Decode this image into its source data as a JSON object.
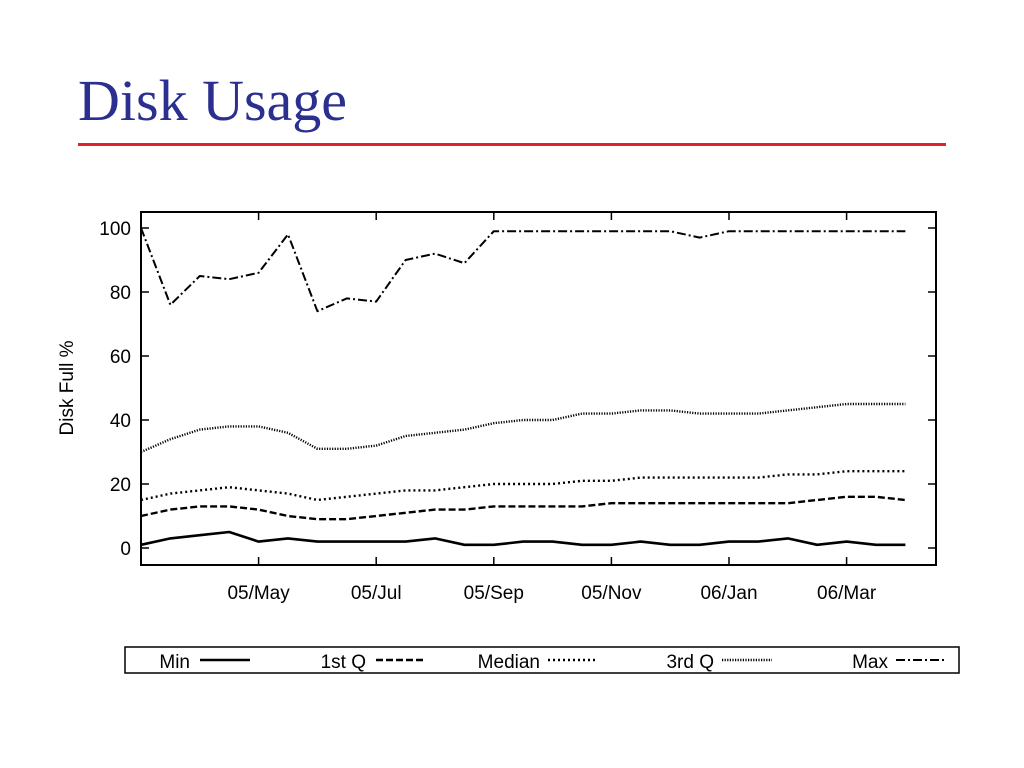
{
  "slide": {
    "title": "Disk Usage"
  },
  "colors": {
    "title": "#2b2f8f",
    "rule": "#e0232a",
    "series": "#000000"
  },
  "chart_data": {
    "type": "line",
    "title": "",
    "xlabel": "",
    "ylabel": "Disk Full %",
    "ylim": [
      0,
      100
    ],
    "xlim": [
      0,
      13.25
    ],
    "x_unit": "months since 2005-03 (0 = March 2005)",
    "yticks": [
      0,
      20,
      40,
      60,
      80,
      100
    ],
    "xticks": [
      {
        "x": 2,
        "label": "05/May"
      },
      {
        "x": 4,
        "label": "05/Jul"
      },
      {
        "x": 6,
        "label": "05/Sep"
      },
      {
        "x": 8,
        "label": "05/Nov"
      },
      {
        "x": 10,
        "label": "06/Jan"
      },
      {
        "x": 12,
        "label": "06/Mar"
      }
    ],
    "grid": false,
    "legend_position": "bottom",
    "x": [
      0,
      0.5,
      1,
      1.5,
      2,
      2.5,
      3,
      3.5,
      4,
      4.5,
      5,
      5.5,
      6,
      6.5,
      7,
      7.5,
      8,
      8.5,
      9,
      9.5,
      10,
      10.5,
      11,
      11.5,
      12,
      12.5,
      13
    ],
    "series": [
      {
        "name": "Min",
        "style": "solid",
        "values": [
          1,
          3,
          4,
          5,
          2,
          3,
          2,
          2,
          2,
          2,
          3,
          1,
          1,
          2,
          2,
          1,
          1,
          2,
          1,
          1,
          2,
          2,
          3,
          1,
          2,
          1,
          1
        ]
      },
      {
        "name": "1st Q",
        "style": "dashed",
        "values": [
          10,
          12,
          13,
          13,
          12,
          10,
          9,
          9,
          10,
          11,
          12,
          12,
          13,
          13,
          13,
          13,
          14,
          14,
          14,
          14,
          14,
          14,
          14,
          15,
          16,
          16,
          15
        ]
      },
      {
        "name": "Median",
        "style": "dotted",
        "values": [
          15,
          17,
          18,
          19,
          18,
          17,
          15,
          16,
          17,
          18,
          18,
          19,
          20,
          20,
          20,
          21,
          21,
          22,
          22,
          22,
          22,
          22,
          23,
          23,
          24,
          24,
          24
        ]
      },
      {
        "name": "3rd Q",
        "style": "fine-dotted",
        "values": [
          30,
          34,
          37,
          38,
          38,
          36,
          31,
          31,
          32,
          35,
          36,
          37,
          39,
          40,
          40,
          42,
          42,
          43,
          43,
          42,
          42,
          42,
          43,
          44,
          45,
          45,
          45
        ]
      },
      {
        "name": "Max",
        "style": "dash-dot",
        "values": [
          100,
          76,
          85,
          84,
          86,
          98,
          74,
          78,
          77,
          90,
          92,
          89,
          99,
          99,
          99,
          99,
          99,
          99,
          99,
          97,
          99,
          99,
          99,
          99,
          99,
          99,
          99
        ]
      }
    ]
  }
}
